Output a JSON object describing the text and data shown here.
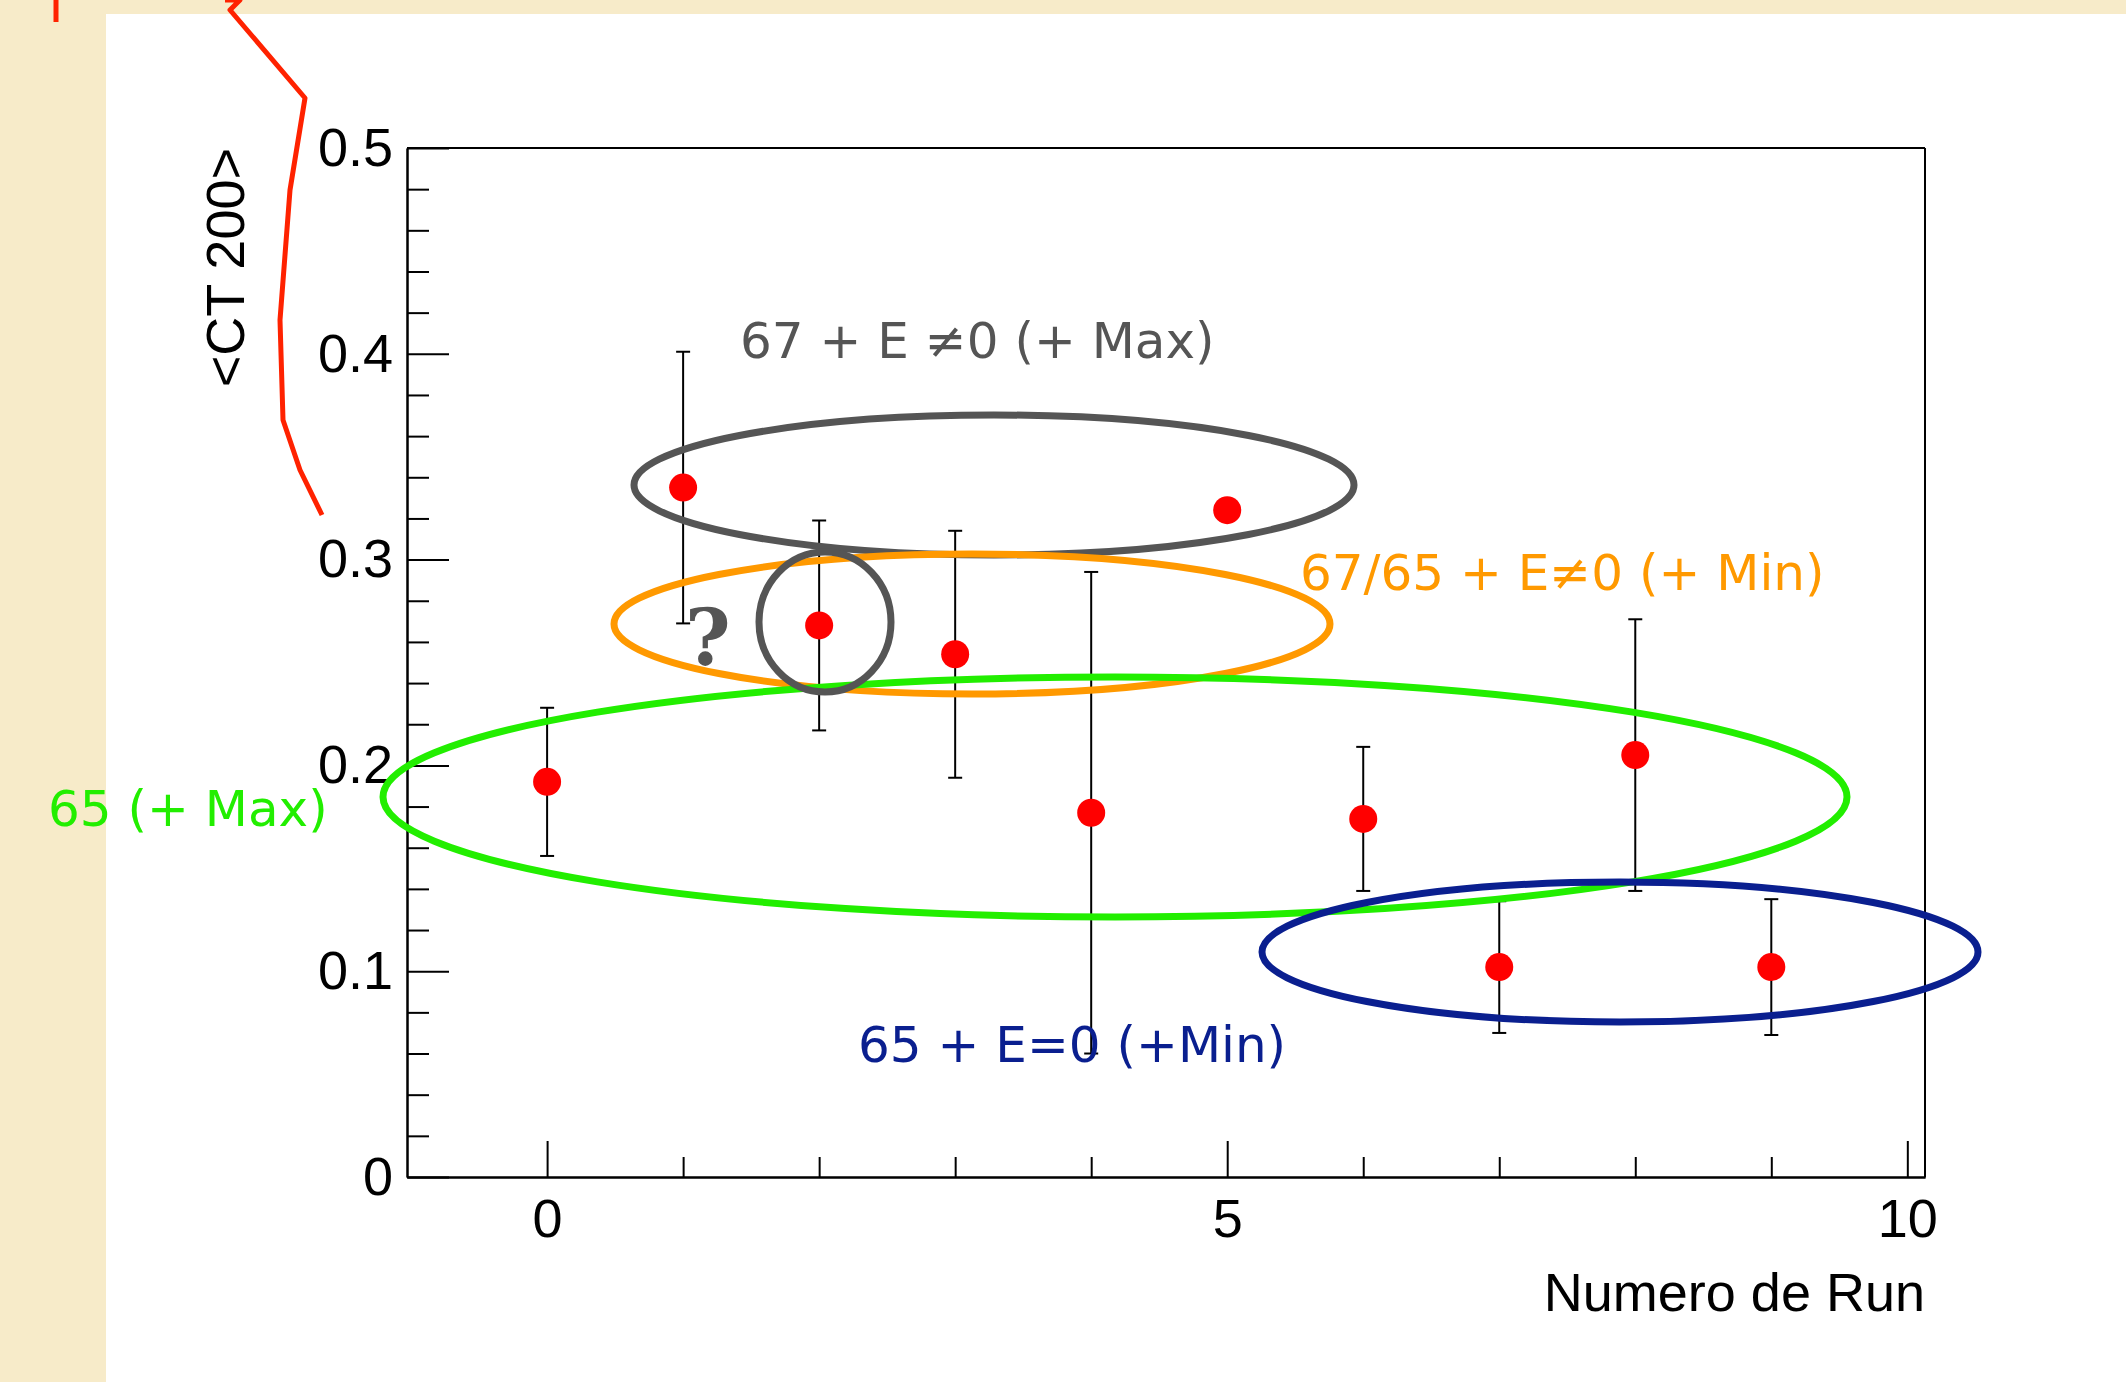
{
  "chart_data": {
    "type": "scatter",
    "xlabel": "Numero de Run",
    "ylabel": "<CT 200>",
    "x": [
      0,
      1,
      2,
      3,
      4,
      5,
      6,
      7,
      8,
      9
    ],
    "values": [
      0.192,
      0.335,
      0.268,
      0.254,
      0.177,
      0.324,
      0.174,
      0.102,
      0.205,
      0.102
    ],
    "errors": [
      0.036,
      0.066,
      0.051,
      0.06,
      0.117,
      null,
      0.035,
      0.032,
      0.066,
      0.033
    ],
    "color": "#ff0000",
    "marker": "circle",
    "xlim": [
      -1.03,
      10.13
    ],
    "ylim": [
      0,
      0.5
    ],
    "xticks": [
      0,
      5,
      10
    ],
    "yticks": [
      0,
      0.1,
      0.2,
      0.3,
      0.4,
      0.5
    ],
    "annotations": [
      "67 + E ≠0 (+ Max)",
      "67/65 + E≠0 (+ Min)",
      "65 (+ Max)",
      "65 + E=0 (+Min)",
      "?"
    ]
  }
}
